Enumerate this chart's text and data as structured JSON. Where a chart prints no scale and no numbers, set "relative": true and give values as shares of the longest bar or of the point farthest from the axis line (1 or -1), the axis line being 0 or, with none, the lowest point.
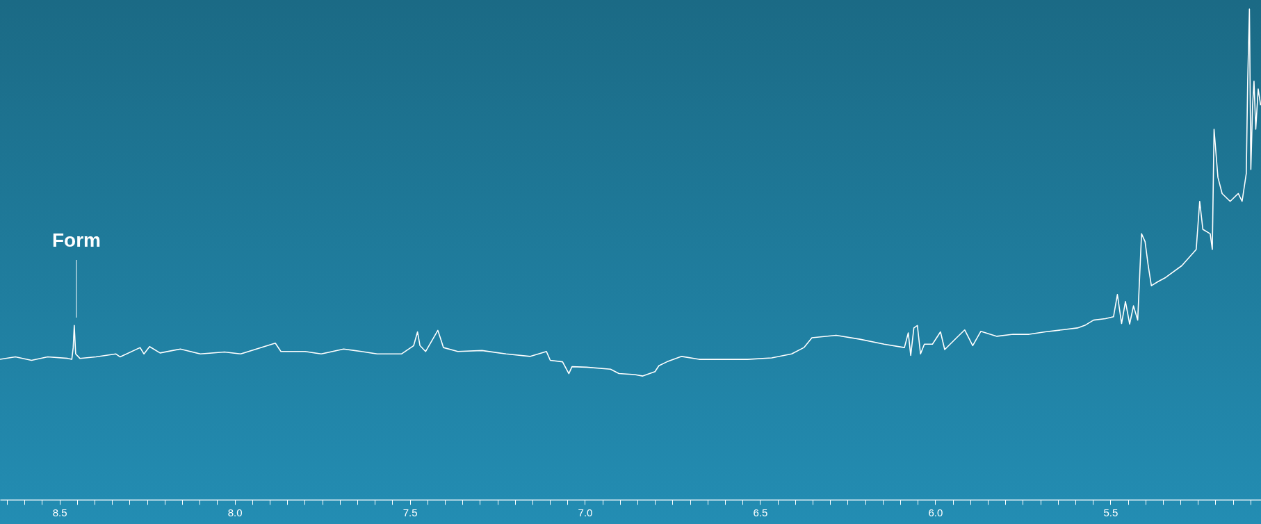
{
  "chart_data": {
    "type": "line",
    "relative": true,
    "xlim": [
      8.67,
      5.07
    ],
    "xticks": [
      {
        "value": 8.65,
        "label": null
      },
      {
        "value": 8.6,
        "label": null
      },
      {
        "value": 8.55,
        "label": null
      },
      8.5,
      {
        "value": 8.45,
        "label": null
      },
      {
        "value": 8.4,
        "label": null
      },
      {
        "value": 8.35,
        "label": null
      },
      {
        "value": 8.3,
        "label": null
      },
      {
        "value": 8.25,
        "label": null
      },
      {
        "value": 8.2,
        "label": null
      },
      {
        "value": 8.15,
        "label": null
      },
      {
        "value": 8.1,
        "label": null
      },
      {
        "value": 8.05,
        "label": null
      },
      {
        "value": 8,
        "label": "8.0"
      },
      {
        "value": 7.95,
        "label": null
      },
      {
        "value": 7.9,
        "label": null
      },
      {
        "value": 7.85,
        "label": null
      },
      {
        "value": 7.8,
        "label": null
      },
      {
        "value": 7.75,
        "label": null
      },
      {
        "value": 7.7,
        "label": null
      },
      {
        "value": 7.65,
        "label": null
      },
      {
        "value": 7.6,
        "label": null
      },
      {
        "value": 7.55,
        "label": null
      },
      7.5,
      {
        "value": 7.45,
        "label": null
      },
      {
        "value": 7.4,
        "label": null
      },
      {
        "value": 7.35,
        "label": null
      },
      {
        "value": 7.3,
        "label": null
      },
      {
        "value": 7.25,
        "label": null
      },
      {
        "value": 7.2,
        "label": null
      },
      {
        "value": 7.15,
        "label": null
      },
      {
        "value": 7.1,
        "label": null
      },
      {
        "value": 7.05,
        "label": null
      },
      {
        "value": 7,
        "label": "7.0"
      },
      {
        "value": 6.95,
        "label": null
      },
      {
        "value": 6.9,
        "label": null
      },
      {
        "value": 6.85,
        "label": null
      },
      {
        "value": 6.8,
        "label": null
      },
      {
        "value": 6.75,
        "label": null
      },
      {
        "value": 6.7,
        "label": null
      },
      {
        "value": 6.65,
        "label": null
      },
      {
        "value": 6.6,
        "label": null
      },
      {
        "value": 6.55,
        "label": null
      },
      6.5,
      {
        "value": 6.45,
        "label": null
      },
      {
        "value": 6.4,
        "label": null
      },
      {
        "value": 6.35,
        "label": null
      },
      {
        "value": 6.3,
        "label": null
      },
      {
        "value": 6.25,
        "label": null
      },
      {
        "value": 6.2,
        "label": null
      },
      {
        "value": 6.15,
        "label": null
      },
      {
        "value": 6.1,
        "label": null
      },
      {
        "value": 6.05,
        "label": null
      },
      {
        "value": 6,
        "label": "6.0"
      },
      {
        "value": 5.95,
        "label": null
      },
      {
        "value": 5.9,
        "label": null
      },
      {
        "value": 5.85,
        "label": null
      },
      {
        "value": 5.8,
        "label": null
      },
      {
        "value": 5.75,
        "label": null
      },
      {
        "value": 5.7,
        "label": null
      },
      {
        "value": 5.65,
        "label": null
      },
      {
        "value": 5.6,
        "label": null
      },
      {
        "value": 5.55,
        "label": null
      },
      5.5,
      {
        "value": 5.45,
        "label": null
      },
      {
        "value": 5.4,
        "label": null
      },
      {
        "value": 5.35,
        "label": null
      },
      {
        "value": 5.3,
        "label": null
      },
      {
        "value": 5.25,
        "label": null
      },
      {
        "value": 5.2,
        "label": null
      },
      {
        "value": 5.15,
        "label": null
      },
      {
        "value": 5.1,
        "label": null
      }
    ],
    "x": [
      8.67,
      8.626,
      8.58,
      8.534,
      8.477,
      8.465,
      8.461,
      8.458,
      8.454,
      8.442,
      8.396,
      8.339,
      8.327,
      8.27,
      8.259,
      8.243,
      8.213,
      8.155,
      8.098,
      8.029,
      7.983,
      7.884,
      7.868,
      7.799,
      7.753,
      7.689,
      7.638,
      7.593,
      7.524,
      7.489,
      7.478,
      7.471,
      7.455,
      7.42,
      7.413,
      7.404,
      7.363,
      7.294,
      7.225,
      7.156,
      7.11,
      7.099,
      7.064,
      7.046,
      7.037,
      6.995,
      6.927,
      6.903,
      6.858,
      6.835,
      6.8,
      6.789,
      6.766,
      6.724,
      6.674,
      6.605,
      6.536,
      6.467,
      6.41,
      6.375,
      6.352,
      6.283,
      6.215,
      6.146,
      6.088,
      6.077,
      6.07,
      6.061,
      6.051,
      6.042,
      6.031,
      6.008,
      5.985,
      5.973,
      5.939,
      5.916,
      5.893,
      5.87,
      5.824,
      5.778,
      5.732,
      5.686,
      5.64,
      5.594,
      5.571,
      5.548,
      5.514,
      5.491,
      5.48,
      5.468,
      5.457,
      5.445,
      5.434,
      5.422,
      5.411,
      5.401,
      5.392,
      5.383,
      5.365,
      5.342,
      5.296,
      5.255,
      5.245,
      5.236,
      5.215,
      5.209,
      5.204,
      5.193,
      5.181,
      5.158,
      5.135,
      5.124,
      5.112,
      5.108,
      5.103,
      5.099,
      5.094,
      5.09,
      5.085,
      5.078,
      5.071
    ],
    "series": [
      {
        "color": "#ffffff",
        "values": [
          0.286,
          0.291,
          0.284,
          0.291,
          0.288,
          0.286,
          0.31,
          0.355,
          0.297,
          0.288,
          0.291,
          0.297,
          0.291,
          0.31,
          0.297,
          0.312,
          0.299,
          0.307,
          0.297,
          0.301,
          0.297,
          0.319,
          0.302,
          0.302,
          0.297,
          0.307,
          0.302,
          0.297,
          0.297,
          0.314,
          0.342,
          0.314,
          0.302,
          0.345,
          0.33,
          0.31,
          0.302,
          0.304,
          0.297,
          0.292,
          0.302,
          0.284,
          0.281,
          0.257,
          0.271,
          0.27,
          0.266,
          0.257,
          0.255,
          0.252,
          0.261,
          0.273,
          0.281,
          0.292,
          0.286,
          0.286,
          0.286,
          0.289,
          0.297,
          0.31,
          0.33,
          0.335,
          0.327,
          0.317,
          0.31,
          0.34,
          0.294,
          0.35,
          0.355,
          0.297,
          0.317,
          0.317,
          0.342,
          0.306,
          0.33,
          0.346,
          0.314,
          0.343,
          0.333,
          0.337,
          0.337,
          0.342,
          0.346,
          0.35,
          0.356,
          0.366,
          0.369,
          0.373,
          0.418,
          0.359,
          0.404,
          0.358,
          0.395,
          0.366,
          0.542,
          0.526,
          0.477,
          0.436,
          0.444,
          0.453,
          0.477,
          0.51,
          0.608,
          0.551,
          0.542,
          0.51,
          0.755,
          0.657,
          0.624,
          0.608,
          0.624,
          0.608,
          0.665,
          0.853,
          1,
          0.673,
          0.804,
          0.853,
          0.755,
          0.837,
          0.804
        ]
      }
    ],
    "annotations": [
      "Form"
    ]
  }
}
